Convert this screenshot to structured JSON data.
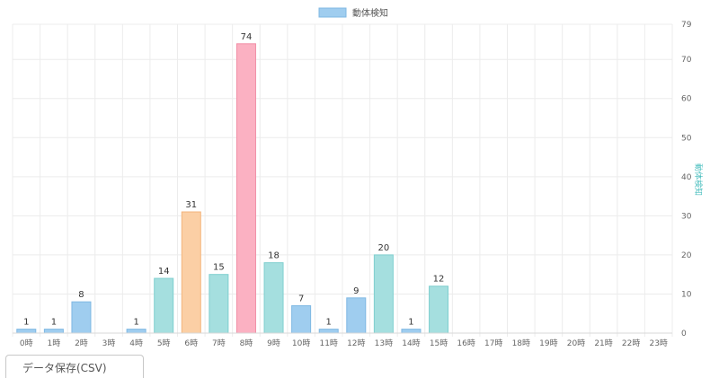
{
  "chart_data": {
    "type": "bar",
    "legend": "動体検知",
    "legend_color": "#9fcdef",
    "legend_position": "top-center",
    "ylabel": "動体検知",
    "ylabel_color": "#4bbfbf",
    "y_axis_position": "right",
    "ylim": [
      0,
      79
    ],
    "yticks": [
      0,
      10,
      20,
      30,
      40,
      50,
      60,
      70,
      79
    ],
    "grid": true,
    "categories": [
      "0時",
      "1時",
      "2時",
      "3時",
      "4時",
      "5時",
      "6時",
      "7時",
      "8時",
      "9時",
      "10時",
      "11時",
      "12時",
      "13時",
      "14時",
      "15時",
      "16時",
      "17時",
      "18時",
      "19時",
      "20時",
      "21時",
      "22時",
      "23時"
    ],
    "values": [
      1,
      1,
      8,
      0,
      1,
      14,
      31,
      15,
      74,
      18,
      7,
      1,
      9,
      20,
      1,
      12,
      0,
      0,
      0,
      0,
      0,
      0,
      0,
      0
    ],
    "labels_shown": [
      true,
      true,
      true,
      false,
      true,
      true,
      true,
      true,
      true,
      true,
      true,
      true,
      true,
      true,
      true,
      true,
      false,
      false,
      false,
      false,
      false,
      false,
      false,
      false
    ],
    "palette": [
      {
        "fill": "#9fcdef",
        "stroke": "#7fb8e3"
      },
      {
        "fill": "#a5dfdf",
        "stroke": "#7fcfcf"
      },
      {
        "fill": "#fbcfa5",
        "stroke": "#f3b47c"
      },
      {
        "fill": "#a5dfdf",
        "stroke": "#7fcfcf"
      },
      {
        "fill": "#fbb1c2",
        "stroke": "#f28ea6"
      }
    ],
    "bar_colors": [
      0,
      0,
      0,
      0,
      0,
      1,
      2,
      3,
      4,
      1,
      0,
      0,
      0,
      1,
      0,
      1,
      0,
      0,
      0,
      0,
      0,
      0,
      0,
      0
    ]
  },
  "save_button": {
    "label": "データ保存(CSV)"
  }
}
